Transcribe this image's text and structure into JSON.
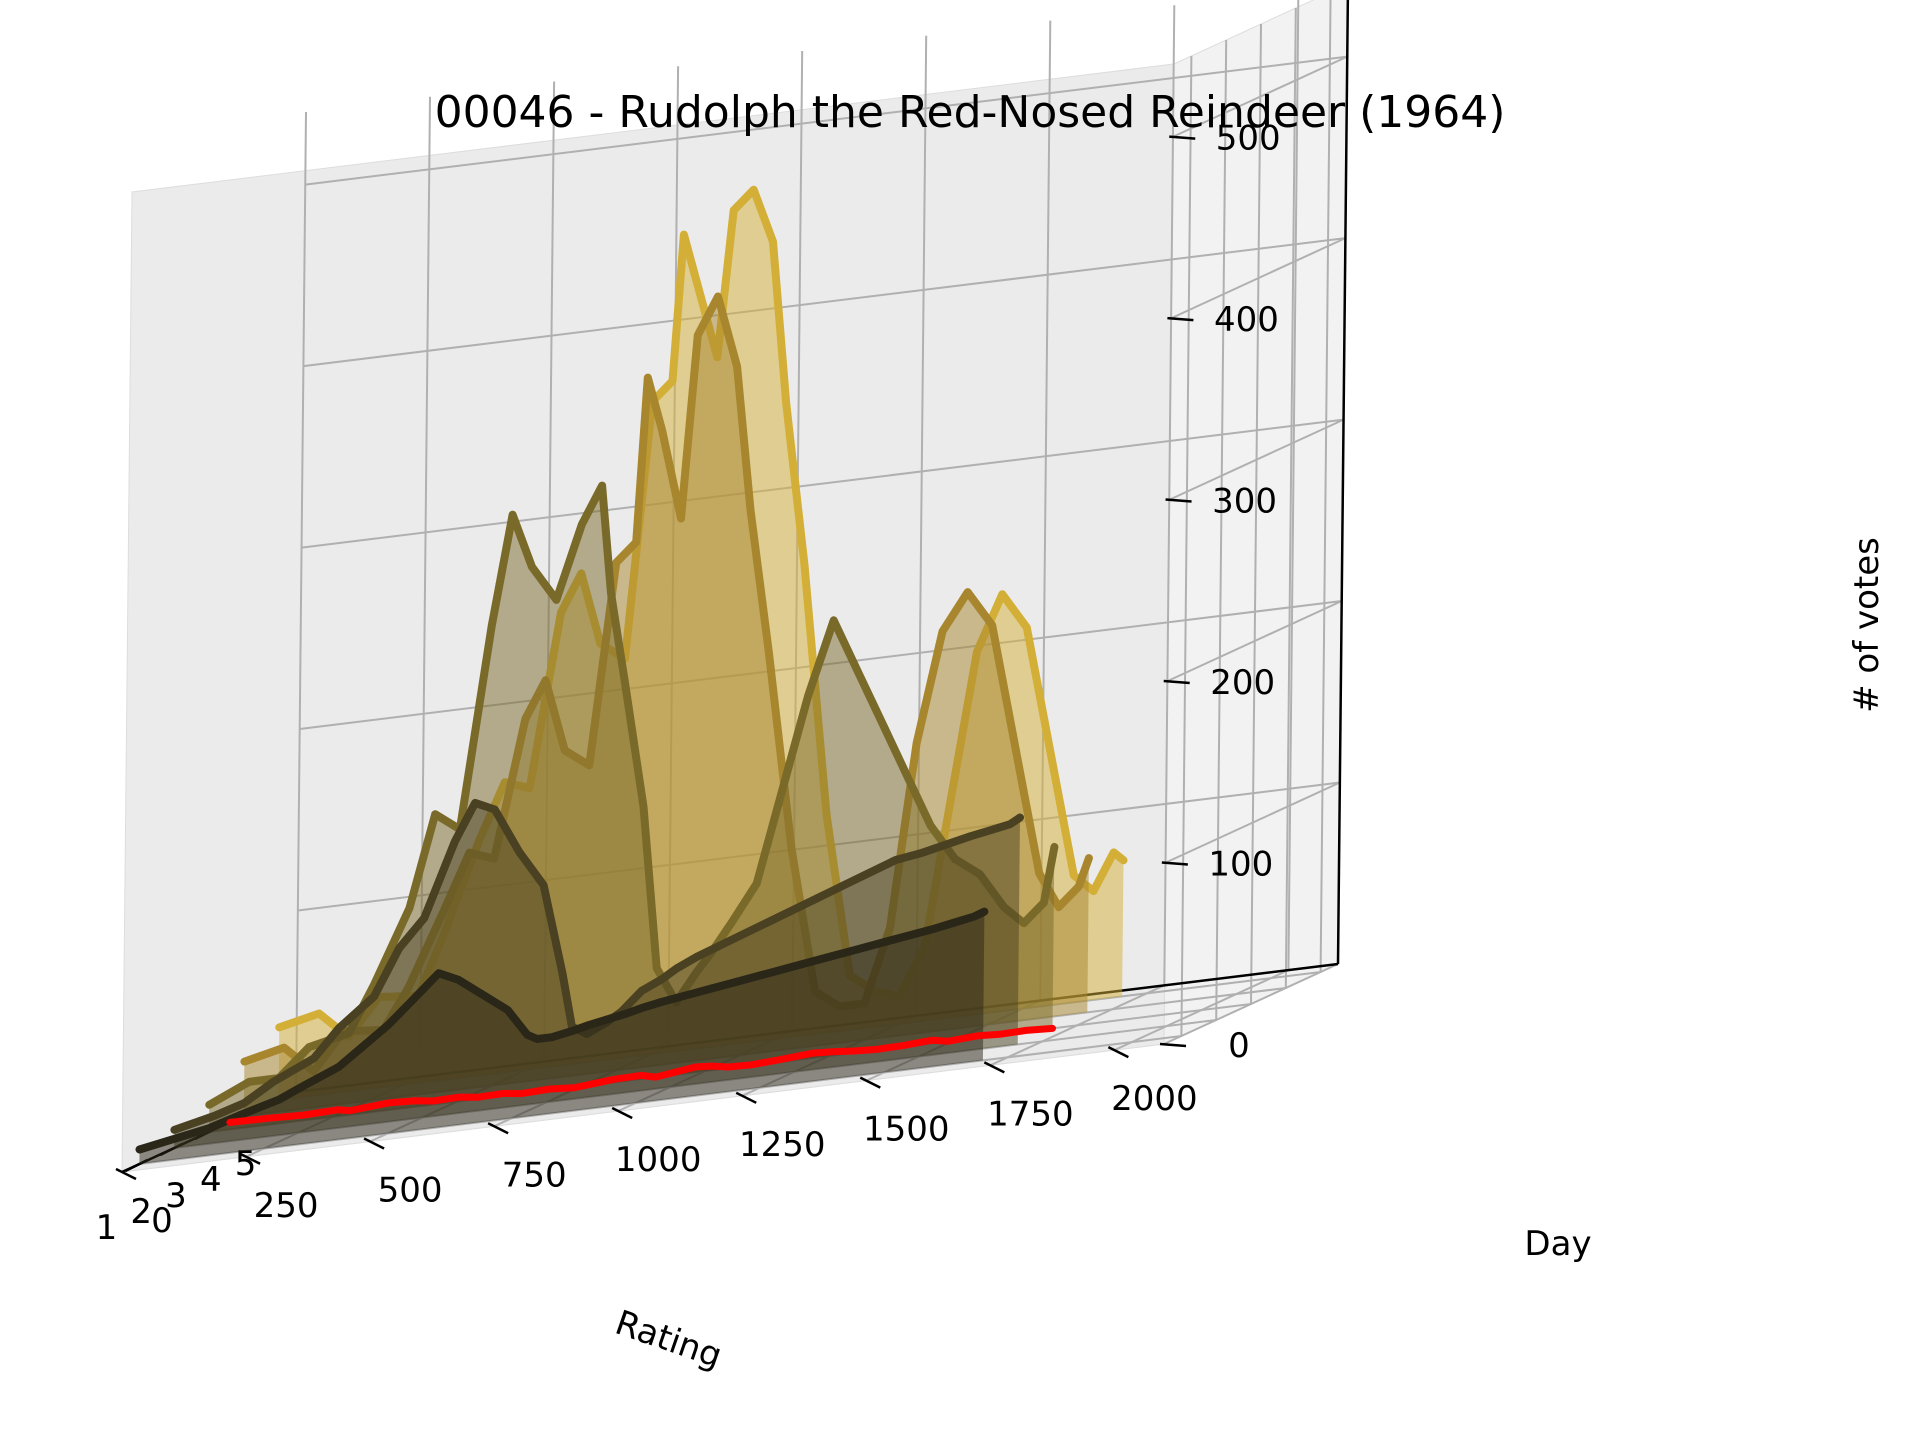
{
  "chart_data": {
    "type": "line",
    "projection": "3d",
    "title": "00046 - Rudolph the Red-Nosed Reindeer (1964)",
    "xlabel": "Rating",
    "ylabel": "Day",
    "zlabel": "# of votes",
    "x_ticks": [
      "5",
      "4",
      "3",
      "2",
      "1"
    ],
    "y_ticks": [
      "0",
      "250",
      "500",
      "750",
      "1000",
      "1250",
      "1500",
      "1750",
      "2000"
    ],
    "z_ticks": [
      "0",
      "100",
      "200",
      "300",
      "400",
      "500"
    ],
    "xlim": [
      0.5,
      5.5
    ],
    "ylim": [
      0,
      2100
    ],
    "zlim": [
      0,
      500
    ],
    "grid": true,
    "series": [
      {
        "rating": 5,
        "color": "#D4AF37",
        "points": [
          [
            0,
            40
          ],
          [
            80,
            45
          ],
          [
            140,
            30
          ],
          [
            200,
            50
          ],
          [
            280,
            48
          ],
          [
            330,
            80
          ],
          [
            400,
            130
          ],
          [
            450,
            160
          ],
          [
            500,
            155
          ],
          [
            560,
            250
          ],
          [
            600,
            270
          ],
          [
            640,
            230
          ],
          [
            690,
            220
          ],
          [
            740,
            360
          ],
          [
            780,
            370
          ],
          [
            800,
            450
          ],
          [
            830,
            420
          ],
          [
            870,
            380
          ],
          [
            900,
            460
          ],
          [
            940,
            470
          ],
          [
            980,
            440
          ],
          [
            1010,
            350
          ],
          [
            1050,
            260
          ],
          [
            1100,
            120
          ],
          [
            1150,
            30
          ],
          [
            1200,
            20
          ],
          [
            1250,
            15
          ],
          [
            1300,
            40
          ],
          [
            1350,
            120
          ],
          [
            1400,
            200
          ],
          [
            1450,
            230
          ],
          [
            1500,
            210
          ],
          [
            1550,
            140
          ],
          [
            1600,
            70
          ],
          [
            1640,
            60
          ],
          [
            1680,
            80
          ],
          [
            1700,
            75
          ]
        ]
      },
      {
        "rating": 4,
        "color": "#A8862E",
        "points": [
          [
            0,
            30
          ],
          [
            80,
            35
          ],
          [
            140,
            20
          ],
          [
            200,
            40
          ],
          [
            280,
            38
          ],
          [
            330,
            60
          ],
          [
            400,
            100
          ],
          [
            450,
            130
          ],
          [
            500,
            125
          ],
          [
            560,
            200
          ],
          [
            600,
            220
          ],
          [
            640,
            180
          ],
          [
            690,
            170
          ],
          [
            740,
            280
          ],
          [
            780,
            290
          ],
          [
            800,
            380
          ],
          [
            830,
            350
          ],
          [
            870,
            300
          ],
          [
            900,
            400
          ],
          [
            940,
            420
          ],
          [
            980,
            380
          ],
          [
            1010,
            300
          ],
          [
            1050,
            220
          ],
          [
            1100,
            110
          ],
          [
            1150,
            30
          ],
          [
            1200,
            20
          ],
          [
            1250,
            20
          ],
          [
            1300,
            60
          ],
          [
            1350,
            160
          ],
          [
            1400,
            220
          ],
          [
            1450,
            240
          ],
          [
            1500,
            220
          ],
          [
            1550,
            150
          ],
          [
            1600,
            80
          ],
          [
            1640,
            60
          ],
          [
            1680,
            70
          ],
          [
            1700,
            85
          ]
        ]
      },
      {
        "rating": 3,
        "color": "#7A6A2A",
        "points": [
          [
            0,
            15
          ],
          [
            80,
            25
          ],
          [
            140,
            25
          ],
          [
            200,
            40
          ],
          [
            280,
            45
          ],
          [
            330,
            70
          ],
          [
            400,
            110
          ],
          [
            450,
            160
          ],
          [
            500,
            150
          ],
          [
            560,
            260
          ],
          [
            600,
            320
          ],
          [
            640,
            290
          ],
          [
            690,
            270
          ],
          [
            740,
            310
          ],
          [
            780,
            330
          ],
          [
            800,
            270
          ],
          [
            830,
            220
          ],
          [
            870,
            150
          ],
          [
            900,
            60
          ],
          [
            940,
            40
          ],
          [
            980,
            55
          ],
          [
            1010,
            65
          ],
          [
            1050,
            80
          ],
          [
            1100,
            100
          ],
          [
            1150,
            150
          ],
          [
            1200,
            200
          ],
          [
            1250,
            240
          ],
          [
            1300,
            210
          ],
          [
            1350,
            180
          ],
          [
            1400,
            150
          ],
          [
            1450,
            120
          ],
          [
            1500,
            100
          ],
          [
            1550,
            90
          ],
          [
            1600,
            70
          ],
          [
            1640,
            60
          ],
          [
            1680,
            70
          ],
          [
            1700,
            100
          ]
        ]
      },
      {
        "rating": 2,
        "color": "#4A4122",
        "points": [
          [
            0,
            10
          ],
          [
            80,
            15
          ],
          [
            140,
            20
          ],
          [
            200,
            30
          ],
          [
            280,
            40
          ],
          [
            330,
            55
          ],
          [
            400,
            70
          ],
          [
            450,
            95
          ],
          [
            500,
            110
          ],
          [
            560,
            150
          ],
          [
            600,
            170
          ],
          [
            640,
            165
          ],
          [
            690,
            140
          ],
          [
            740,
            120
          ],
          [
            780,
            70
          ],
          [
            800,
            40
          ],
          [
            830,
            35
          ],
          [
            870,
            40
          ],
          [
            900,
            45
          ],
          [
            940,
            55
          ],
          [
            980,
            60
          ],
          [
            1010,
            65
          ],
          [
            1050,
            70
          ],
          [
            1100,
            75
          ],
          [
            1150,
            80
          ],
          [
            1200,
            85
          ],
          [
            1250,
            90
          ],
          [
            1300,
            95
          ],
          [
            1350,
            100
          ],
          [
            1400,
            105
          ],
          [
            1450,
            110
          ],
          [
            1500,
            112
          ],
          [
            1550,
            115
          ],
          [
            1600,
            118
          ],
          [
            1640,
            120
          ],
          [
            1680,
            122
          ],
          [
            1700,
            125
          ]
        ]
      },
      {
        "rating": 1,
        "color": "#2A2618",
        "points": [
          [
            0,
            8
          ],
          [
            80,
            12
          ],
          [
            140,
            15
          ],
          [
            200,
            20
          ],
          [
            280,
            26
          ],
          [
            330,
            32
          ],
          [
            400,
            40
          ],
          [
            450,
            50
          ],
          [
            500,
            60
          ],
          [
            560,
            75
          ],
          [
            600,
            85
          ],
          [
            640,
            80
          ],
          [
            690,
            70
          ],
          [
            740,
            60
          ],
          [
            780,
            45
          ],
          [
            800,
            42
          ],
          [
            830,
            42
          ],
          [
            870,
            44
          ],
          [
            900,
            46
          ],
          [
            940,
            48
          ],
          [
            980,
            50
          ],
          [
            1010,
            52
          ],
          [
            1050,
            54
          ],
          [
            1100,
            56
          ],
          [
            1150,
            58
          ],
          [
            1200,
            60
          ],
          [
            1250,
            62
          ],
          [
            1300,
            64
          ],
          [
            1350,
            66
          ],
          [
            1400,
            68
          ],
          [
            1450,
            70
          ],
          [
            1500,
            72
          ],
          [
            1550,
            74
          ],
          [
            1600,
            76
          ],
          [
            1640,
            78
          ],
          [
            1680,
            80
          ],
          [
            1700,
            82
          ]
        ]
      }
    ],
    "mean_rating_trace": {
      "color": "#FF0000",
      "points": [
        [
          0,
          3.6
        ],
        [
          80,
          3.55
        ],
        [
          160,
          3.45
        ],
        [
          220,
          3.55
        ],
        [
          260,
          3.35
        ],
        [
          320,
          3.6
        ],
        [
          380,
          3.5
        ],
        [
          430,
          3.3
        ],
        [
          480,
          3.35
        ],
        [
          530,
          3.15
        ],
        [
          580,
          3.2
        ],
        [
          630,
          3.0
        ],
        [
          680,
          3.1
        ],
        [
          740,
          2.95
        ],
        [
          800,
          3.25
        ],
        [
          850,
          3.3
        ],
        [
          900,
          3.0
        ],
        [
          950,
          3.45
        ],
        [
          990,
          3.35
        ],
        [
          1040,
          3.1
        ],
        [
          1090,
          3.05
        ],
        [
          1140,
          3.2
        ],
        [
          1190,
          3.4
        ],
        [
          1240,
          3.3
        ],
        [
          1290,
          3.15
        ],
        [
          1340,
          3.05
        ],
        [
          1390,
          3.1
        ],
        [
          1440,
          3.25
        ],
        [
          1490,
          3.0
        ],
        [
          1540,
          3.15
        ],
        [
          1590,
          3.05
        ],
        [
          1640,
          3.1
        ],
        [
          1700,
          3.0
        ]
      ]
    }
  }
}
